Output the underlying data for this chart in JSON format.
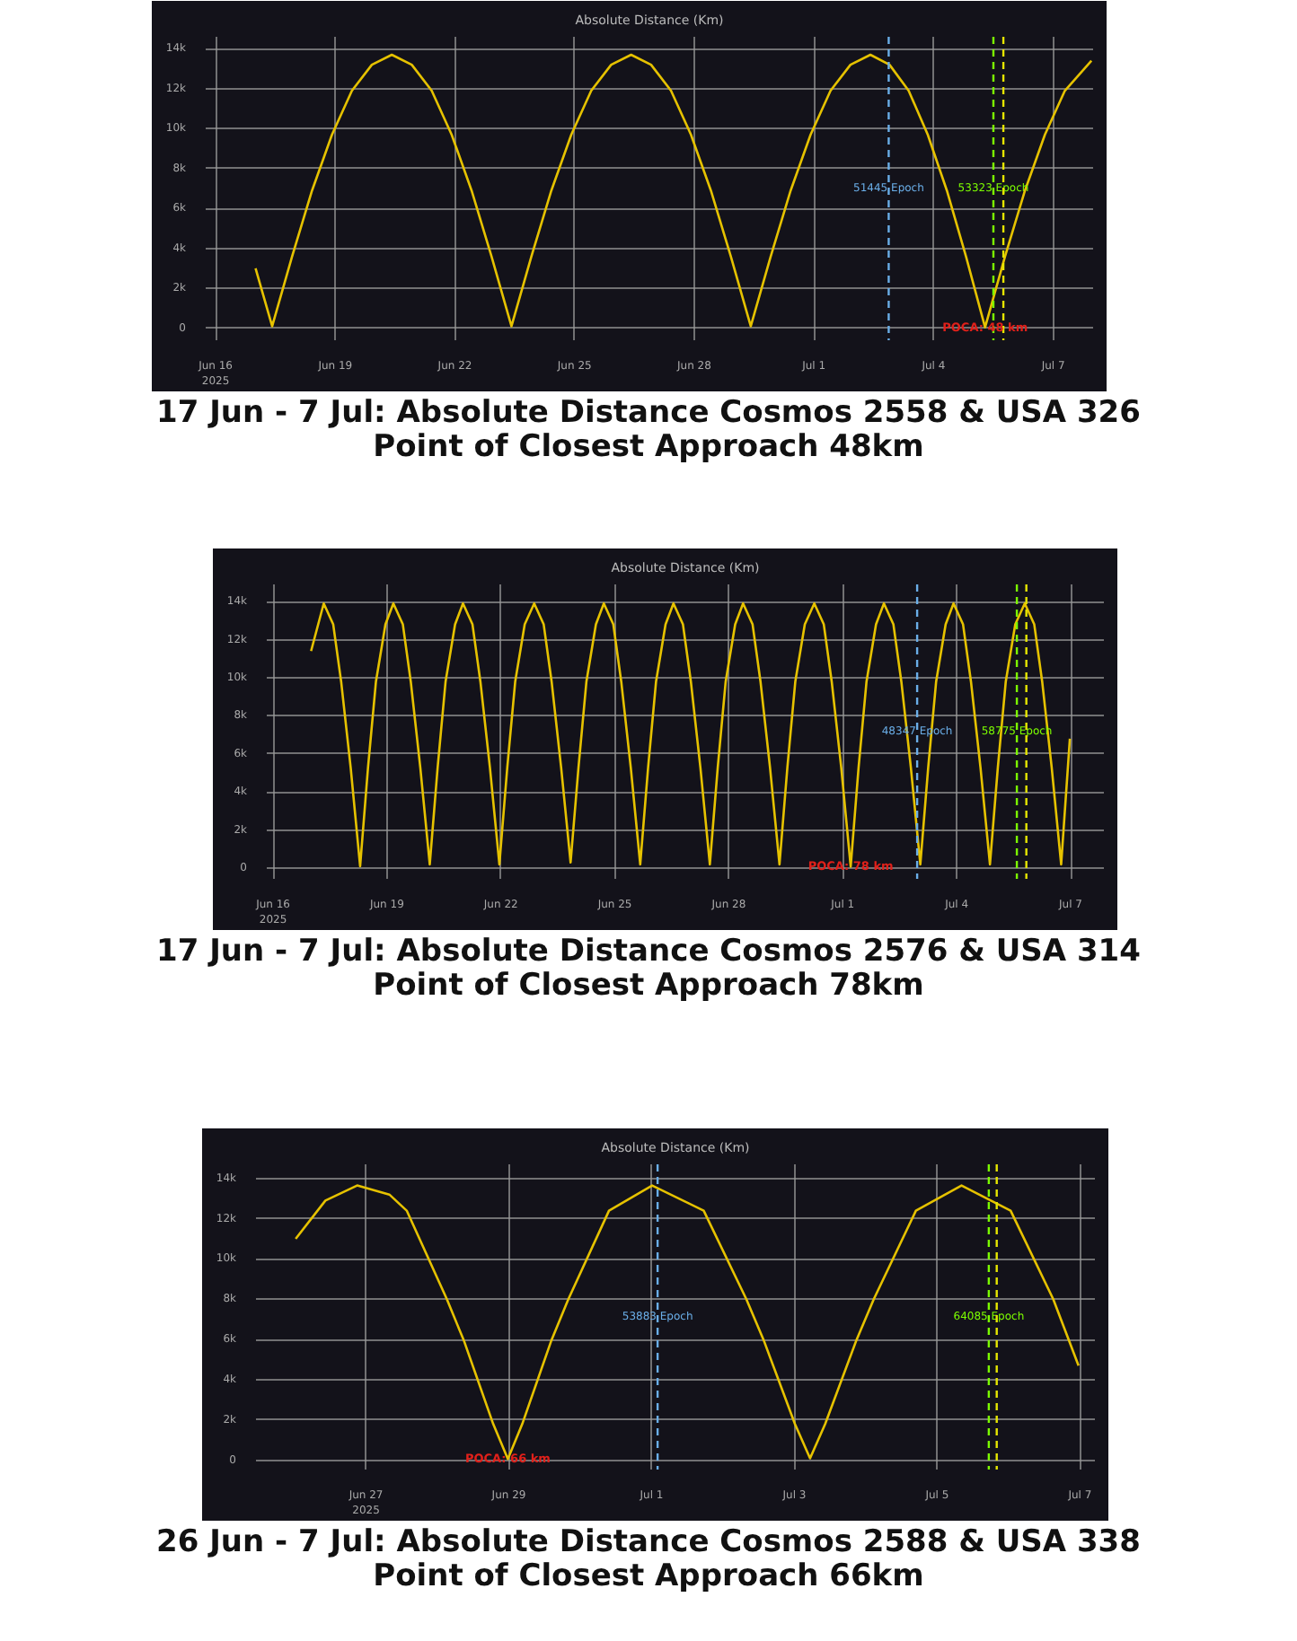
{
  "chart_data": [
    {
      "type": "line",
      "title": "Absolute Distance (Km)",
      "subtitle": "17 Jun - 7 Jul:  Absolute Distance Cosmos 2558 & USA 326",
      "annotations": [
        "Point of Closest Approach 48km",
        {
          "text": "POCA: 48 km",
          "x": "2025-07-05T07:00",
          "y": 48
        }
      ],
      "x": [
        "2025-06-17T00:00",
        "2025-06-17T10:00",
        "2025-06-17T22:00",
        "2025-06-18T10:00",
        "2025-06-18T22:00",
        "2025-06-19T10:00",
        "2025-06-19T22:00",
        "2025-06-20T10:00",
        "2025-06-20T22:00",
        "2025-06-21T10:00",
        "2025-06-21T22:00",
        "2025-06-22T10:00",
        "2025-06-22T22:00",
        "2025-06-23T10:00",
        "2025-06-23T22:00",
        "2025-06-24T10:00",
        "2025-06-24T22:00",
        "2025-06-25T10:00",
        "2025-06-25T22:00",
        "2025-06-26T10:00",
        "2025-06-26T22:00",
        "2025-06-27T10:00",
        "2025-06-27T22:00",
        "2025-06-28T10:00",
        "2025-06-28T22:00",
        "2025-06-29T10:00",
        "2025-06-29T22:00",
        "2025-06-30T10:00",
        "2025-06-30T22:00",
        "2025-07-01T10:00",
        "2025-07-01T22:00",
        "2025-07-02T10:00",
        "2025-07-02T21:30",
        "2025-07-03T09:00",
        "2025-07-03T20:30",
        "2025-07-04T08:00",
        "2025-07-04T19:30",
        "2025-07-05T07:00",
        "2025-07-05T19:00",
        "2025-07-06T07:00",
        "2025-07-06T19:00",
        "2025-07-07T07:00",
        "2025-07-07T23:00"
      ],
      "series": [
        {
          "color": "#e6c200",
          "values": [
            3000,
            100,
            3600,
            6900,
            9700,
            11900,
            13200,
            13700,
            13200,
            11900,
            9700,
            6900,
            3600,
            100,
            3600,
            6900,
            9700,
            11900,
            13200,
            13700,
            13200,
            11900,
            9700,
            6900,
            3600,
            100,
            3600,
            6900,
            9700,
            11900,
            13200,
            13700,
            13200,
            11900,
            9700,
            6900,
            3600,
            48,
            3600,
            6900,
            9700,
            11900,
            13400
          ]
        }
      ],
      "xlim": [
        "2025-06-15T18:00",
        "2025-07-08T00:00"
      ],
      "xticks": [
        {
          "value": "2025-06-16",
          "label": "Jun 16\n2025"
        },
        {
          "value": "2025-06-19",
          "label": "Jun 19"
        },
        {
          "value": "2025-06-22",
          "label": "Jun 22"
        },
        {
          "value": "2025-06-25",
          "label": "Jun 25"
        },
        {
          "value": "2025-06-28",
          "label": "Jun 28"
        },
        {
          "value": "2025-07-01",
          "label": "Jul 1"
        },
        {
          "value": "2025-07-04",
          "label": "Jul 4"
        },
        {
          "value": "2025-07-07",
          "label": "Jul 7"
        }
      ],
      "ylim": [
        -600,
        14600
      ],
      "yticks": [
        0,
        {
          "value": 2000,
          "label": "2k"
        },
        {
          "value": 4000,
          "label": "4k"
        },
        {
          "value": 6000,
          "label": "6k"
        },
        {
          "value": 8000,
          "label": "8k"
        },
        {
          "value": 10000,
          "label": "10k"
        },
        {
          "value": 12000,
          "label": "12k"
        },
        {
          "value": 14000,
          "label": "14k"
        }
      ],
      "ref_lines": [
        {
          "axis": "x",
          "value": "2025-07-02T21:00",
          "label": "51445 Epoch",
          "color": "#6aaee8",
          "line_style": "dashed"
        },
        {
          "axis": "x",
          "value": "2025-07-05T12:00",
          "label": "53323 Epoch",
          "color": "#7cfc00",
          "line_style": "dashed"
        },
        {
          "axis": "x",
          "value": "2025-07-05T18:00",
          "color": "#e6e600",
          "line_style": "dashed"
        }
      ],
      "grid": true,
      "line_style": "solid"
    },
    {
      "type": "line",
      "title": "Absolute Distance (Km)",
      "subtitle": "17 Jun - 7 Jul:  Absolute Distance Cosmos 2576 & USA 314",
      "annotations": [
        "Point of Closest Approach 78km",
        {
          "text": "POCA: 78 km",
          "x": "2025-07-01T05:00",
          "y": 78
        }
      ],
      "x": [
        "2025-06-17T00:00",
        "2025-06-17T08:00",
        "2025-06-17T14:00",
        "2025-06-17T19:00",
        "2025-06-18T01:00",
        "2025-06-18T07:00",
        "2025-06-18T12:00",
        "2025-06-18T17:00",
        "2025-06-18T23:00",
        "2025-06-19T04:00",
        "2025-06-19T10:00",
        "2025-06-19T15:00",
        "2025-06-19T21:00",
        "2025-06-20T03:00",
        "2025-06-20T08:00",
        "2025-06-20T13:00",
        "2025-06-20T19:00",
        "2025-06-21T00:00",
        "2025-06-21T06:00",
        "2025-06-21T11:00",
        "2025-06-21T17:00",
        "2025-06-21T23:00",
        "2025-06-22T04:00",
        "2025-06-22T09:00",
        "2025-06-22T15:00",
        "2025-06-22T21:00",
        "2025-06-23T03:00",
        "2025-06-23T08:00",
        "2025-06-23T14:00",
        "2025-06-23T20:00",
        "2025-06-24T01:00",
        "2025-06-24T06:00",
        "2025-06-24T12:00",
        "2025-06-24T17:00",
        "2025-06-24T23:00",
        "2025-06-25T04:00",
        "2025-06-25T10:00",
        "2025-06-25T16:00",
        "2025-06-25T21:00",
        "2025-06-26T02:00",
        "2025-06-26T08:00",
        "2025-06-26T13:00",
        "2025-06-26T19:00",
        "2025-06-27T00:00",
        "2025-06-27T06:00",
        "2025-06-27T12:00",
        "2025-06-27T17:00",
        "2025-06-27T22:00",
        "2025-06-28T04:00",
        "2025-06-28T09:00",
        "2025-06-28T15:00",
        "2025-06-28T20:00",
        "2025-06-29T02:00",
        "2025-06-29T08:00",
        "2025-06-29T13:00",
        "2025-06-29T18:00",
        "2025-06-30T00:00",
        "2025-06-30T06:00",
        "2025-06-30T12:00",
        "2025-06-30T17:00",
        "2025-06-30T23:00",
        "2025-07-01T05:00",
        "2025-07-01T10:00",
        "2025-07-01T15:00",
        "2025-07-01T21:00",
        "2025-07-02T02:00",
        "2025-07-02T08:00",
        "2025-07-02T13:00",
        "2025-07-02T19:00",
        "2025-07-03T01:00",
        "2025-07-03T06:00",
        "2025-07-03T11:00",
        "2025-07-03T17:00",
        "2025-07-03T22:00",
        "2025-07-04T04:00",
        "2025-07-04T09:00",
        "2025-07-04T15:00",
        "2025-07-04T21:00",
        "2025-07-05T02:00",
        "2025-07-05T07:00",
        "2025-07-05T13:00",
        "2025-07-05T19:00",
        "2025-07-06T01:00",
        "2025-07-06T06:00",
        "2025-07-06T12:00",
        "2025-07-06T18:00",
        "2025-07-06T23:30"
      ],
      "series": [
        {
          "color": "#e6c200",
          "values": [
            11400,
            13900,
            12800,
            9800,
            5300,
            100,
            5300,
            9800,
            12800,
            13900,
            12800,
            9800,
            5300,
            200,
            5300,
            9800,
            12800,
            13900,
            12800,
            9800,
            5300,
            200,
            5300,
            9800,
            12800,
            13900,
            12800,
            9800,
            5300,
            300,
            5300,
            9800,
            12800,
            13900,
            12800,
            9800,
            5300,
            200,
            5300,
            9800,
            12800,
            13900,
            12800,
            9800,
            5300,
            200,
            5300,
            9800,
            12800,
            13900,
            12800,
            9800,
            5300,
            200,
            5300,
            9800,
            12800,
            13900,
            12800,
            9800,
            5300,
            78,
            5300,
            9800,
            12800,
            13900,
            12800,
            9800,
            5300,
            200,
            5300,
            9800,
            12800,
            13900,
            12800,
            9800,
            5300,
            200,
            5300,
            9800,
            12800,
            13900,
            12800,
            9800,
            5300,
            200,
            6800
          ]
        }
      ],
      "xlim": [
        "2025-06-15T20:00",
        "2025-07-07T21:00"
      ],
      "xticks": [
        {
          "value": "2025-06-16",
          "label": "Jun 16\n2025"
        },
        {
          "value": "2025-06-19",
          "label": "Jun 19"
        },
        {
          "value": "2025-06-22",
          "label": "Jun 22"
        },
        {
          "value": "2025-06-25",
          "label": "Jun 25"
        },
        {
          "value": "2025-06-28",
          "label": "Jun 28"
        },
        {
          "value": "2025-07-01",
          "label": "Jul 1"
        },
        {
          "value": "2025-07-04",
          "label": "Jul 4"
        },
        {
          "value": "2025-07-07",
          "label": "Jul 7"
        }
      ],
      "ylim": [
        -560,
        14900
      ],
      "yticks": [
        0,
        {
          "value": 2000,
          "label": "2k"
        },
        {
          "value": 4000,
          "label": "4k"
        },
        {
          "value": 6000,
          "label": "6k"
        },
        {
          "value": 8000,
          "label": "8k"
        },
        {
          "value": 10000,
          "label": "10k"
        },
        {
          "value": 12000,
          "label": "12k"
        },
        {
          "value": 14000,
          "label": "14k"
        }
      ],
      "ref_lines": [
        {
          "axis": "x",
          "value": "2025-07-02T23:00",
          "label": "48347 Epoch",
          "color": "#6aaee8",
          "line_style": "dashed"
        },
        {
          "axis": "x",
          "value": "2025-07-05T14:00",
          "label": "58775 Epoch",
          "color": "#7cfc00",
          "line_style": "dashed"
        },
        {
          "axis": "x",
          "value": "2025-07-05T20:00",
          "color": "#e6e600",
          "line_style": "dashed"
        }
      ],
      "grid": true,
      "line_style": "solid"
    },
    {
      "type": "line",
      "title": "Absolute Distance (Km)",
      "subtitle": "26 Jun - 7 Jul:  Absolute Distance Cosmos 2588 & USA 338",
      "annotations": [
        "Point of Closest Approach 66km",
        {
          "text": "POCA: 66 km",
          "x": "2025-06-28T23:40",
          "y": 66
        }
      ],
      "x": [
        "2025-06-26T00:20",
        "2025-06-26T10:20",
        "2025-06-26T21:00",
        "2025-06-27T07:50",
        "2025-06-27T13:40",
        "2025-06-28T03:10",
        "2025-06-28T09:00",
        "2025-06-28T18:45",
        "2025-06-28T23:40",
        "2025-06-29T04:30",
        "2025-06-29T14:10",
        "2025-06-29T20:00",
        "2025-06-30T09:40",
        "2025-07-01T00:10",
        "2025-07-01T17:30",
        "2025-07-02T07:50",
        "2025-07-02T13:50",
        "2025-07-03T00:10",
        "2025-07-03T05:15",
        "2025-07-03T10:20",
        "2025-07-03T20:40",
        "2025-07-04T02:40",
        "2025-07-04T16:50",
        "2025-07-05T08:10",
        "2025-07-06T00:40",
        "2025-07-06T15:00",
        "2025-07-06T23:30"
      ],
      "series": [
        {
          "color": "#e6c200",
          "values": [
            11000,
            12900,
            13650,
            13200,
            12400,
            8000,
            5900,
            1800,
            66,
            1800,
            5900,
            8000,
            12400,
            13650,
            12400,
            8000,
            5900,
            1800,
            100,
            1800,
            5900,
            8000,
            12400,
            13650,
            12400,
            8000,
            4700
          ]
        }
      ],
      "xlim": [
        "2025-06-25T11:00",
        "2025-07-07T05:00"
      ],
      "xticks": [
        {
          "value": "2025-06-27",
          "label": "Jun 27\n2025"
        },
        {
          "value": "2025-06-29",
          "label": "Jun 29"
        },
        {
          "value": "2025-07-01",
          "label": "Jul 1"
        },
        {
          "value": "2025-07-03",
          "label": "Jul 3"
        },
        {
          "value": "2025-07-05",
          "label": "Jul 5"
        },
        {
          "value": "2025-07-07",
          "label": "Jul 7"
        }
      ],
      "ylim": [
        -460,
        14700
      ],
      "yticks": [
        0,
        {
          "value": 2000,
          "label": "2k"
        },
        {
          "value": 4000,
          "label": "4k"
        },
        {
          "value": 6000,
          "label": "6k"
        },
        {
          "value": 8000,
          "label": "8k"
        },
        {
          "value": 10000,
          "label": "10k"
        },
        {
          "value": 12000,
          "label": "12k"
        },
        {
          "value": 14000,
          "label": "14k"
        }
      ],
      "ref_lines": [
        {
          "axis": "x",
          "value": "2025-07-01T02:00",
          "label": "53883 Epoch",
          "color": "#6aaee8",
          "line_style": "dashed"
        },
        {
          "axis": "x",
          "value": "2025-07-05T17:20",
          "label": "64085 Epoch",
          "color": "#7cfc00",
          "line_style": "dashed"
        },
        {
          "axis": "x",
          "value": "2025-07-05T20:00",
          "color": "#e6e600",
          "line_style": "dashed"
        }
      ],
      "grid": true,
      "line_style": "solid"
    }
  ]
}
